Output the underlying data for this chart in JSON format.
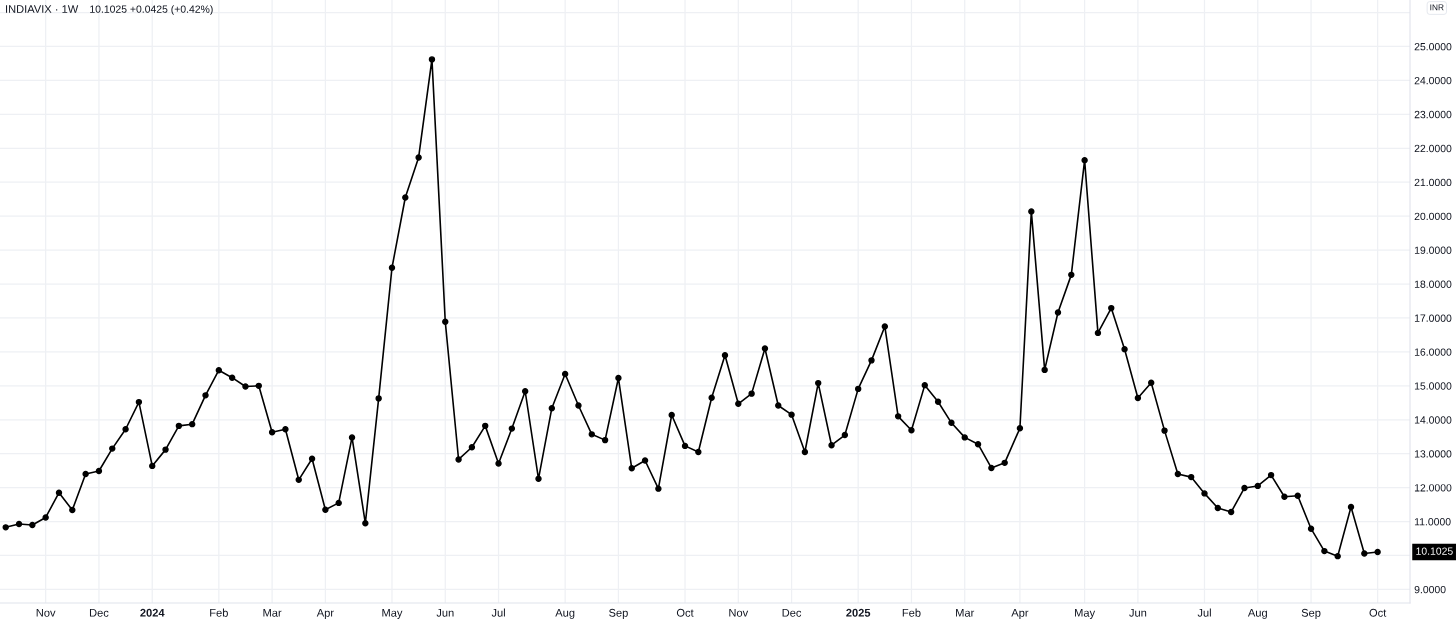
{
  "chart_data": {
    "type": "line",
    "title": "INDIAVIX · 1W",
    "subtitle": "10.1025 +0.0425 (+0.42%)",
    "x": [
      "2023-10-16",
      "2023-10-23",
      "2023-10-30",
      "2023-11-06",
      "2023-11-13",
      "2023-11-20",
      "2023-11-27",
      "2023-12-04",
      "2023-12-11",
      "2023-12-18",
      "2023-12-25",
      "2024-01-01",
      "2024-01-08",
      "2024-01-15",
      "2024-01-22",
      "2024-01-29",
      "2024-02-05",
      "2024-02-12",
      "2024-02-19",
      "2024-02-26",
      "2024-03-04",
      "2024-03-11",
      "2024-03-18",
      "2024-03-25",
      "2024-04-01",
      "2024-04-08",
      "2024-04-15",
      "2024-04-22",
      "2024-04-29",
      "2024-05-06",
      "2024-05-13",
      "2024-05-20",
      "2024-05-27",
      "2024-06-03",
      "2024-06-10",
      "2024-06-17",
      "2024-06-24",
      "2024-07-01",
      "2024-07-08",
      "2024-07-15",
      "2024-07-22",
      "2024-07-29",
      "2024-08-05",
      "2024-08-12",
      "2024-08-19",
      "2024-08-26",
      "2024-09-02",
      "2024-09-09",
      "2024-09-16",
      "2024-09-23",
      "2024-09-30",
      "2024-10-07",
      "2024-10-14",
      "2024-10-21",
      "2024-10-28",
      "2024-11-04",
      "2024-11-11",
      "2024-11-18",
      "2024-11-25",
      "2024-12-02",
      "2024-12-09",
      "2024-12-16",
      "2024-12-23",
      "2024-12-30",
      "2025-01-06",
      "2025-01-13",
      "2025-01-20",
      "2025-01-27",
      "2025-02-03",
      "2025-02-10",
      "2025-02-17",
      "2025-02-24",
      "2025-03-03",
      "2025-03-10",
      "2025-03-17",
      "2025-03-24",
      "2025-04-01",
      "2025-04-07",
      "2025-04-14",
      "2025-04-21",
      "2025-04-28",
      "2025-05-05",
      "2025-05-12",
      "2025-05-19",
      "2025-05-26",
      "2025-06-02",
      "2025-06-09",
      "2025-06-16",
      "2025-06-23",
      "2025-06-30",
      "2025-07-07",
      "2025-07-14",
      "2025-07-21",
      "2025-07-28",
      "2025-08-04",
      "2025-08-11",
      "2025-08-18",
      "2025-08-25",
      "2025-09-01",
      "2025-09-08",
      "2025-09-15",
      "2025-09-22",
      "2025-09-29",
      "2025-10-06"
    ],
    "series": [
      {
        "color": "#000000",
        "values": [
          10.83,
          10.93,
          10.9,
          11.12,
          11.85,
          11.34,
          12.4,
          12.49,
          13.15,
          13.72,
          14.52,
          12.64,
          13.12,
          13.82,
          13.87,
          14.72,
          15.46,
          15.24,
          14.98,
          15.0,
          13.63,
          13.72,
          12.23,
          12.85,
          11.35,
          11.55,
          13.48,
          10.95,
          14.63,
          18.48,
          20.55,
          21.73,
          24.62,
          16.89,
          12.83,
          13.19,
          13.82,
          12.71,
          13.74,
          14.84,
          12.26,
          14.34,
          15.35,
          14.42,
          13.57,
          13.4,
          15.23,
          12.57,
          12.8,
          11.97,
          14.14,
          13.23,
          13.05,
          14.65,
          15.9,
          14.47,
          14.77,
          16.1,
          14.42,
          14.15,
          13.05,
          15.08,
          13.25,
          13.55,
          14.91,
          15.75,
          16.75,
          14.1,
          13.69,
          15.02,
          14.53,
          13.91,
          13.48,
          13.28,
          12.58,
          12.73,
          13.75,
          20.14,
          15.47,
          17.16,
          18.27,
          21.65,
          16.56,
          17.29,
          16.08,
          14.64,
          15.09,
          13.68,
          12.4,
          12.31,
          11.83,
          11.4,
          11.28,
          11.99,
          12.05,
          12.37,
          11.73,
          11.76,
          10.79,
          10.13,
          9.98,
          11.43,
          10.06,
          10.1025
        ]
      }
    ],
    "xlim": [
      "2023-10-13",
      "2025-10-23"
    ],
    "xticks": [
      {
        "value": "2023-11-06",
        "label": "Nov"
      },
      {
        "value": "2023-12-04",
        "label": "Dec"
      },
      {
        "value": "2024-01-01",
        "label": "2024"
      },
      {
        "value": "2024-02-05",
        "label": "Feb"
      },
      {
        "value": "2024-03-04",
        "label": "Mar"
      },
      {
        "value": "2024-04-01",
        "label": "Apr"
      },
      {
        "value": "2024-05-06",
        "label": "May"
      },
      {
        "value": "2024-06-03",
        "label": "Jun"
      },
      {
        "value": "2024-07-01",
        "label": "Jul"
      },
      {
        "value": "2024-08-05",
        "label": "Aug"
      },
      {
        "value": "2024-09-02",
        "label": "Sep"
      },
      {
        "value": "2024-10-07",
        "label": "Oct"
      },
      {
        "value": "2024-11-04",
        "label": "Nov"
      },
      {
        "value": "2024-12-02",
        "label": "Dec"
      },
      {
        "value": "2025-01-06",
        "label": "2025"
      },
      {
        "value": "2025-02-03",
        "label": "Feb"
      },
      {
        "value": "2025-03-03",
        "label": "Mar"
      },
      {
        "value": "2025-04-01",
        "label": "Apr"
      },
      {
        "value": "2025-05-05",
        "label": "May"
      },
      {
        "value": "2025-06-02",
        "label": "Jun"
      },
      {
        "value": "2025-07-07",
        "label": "Jul"
      },
      {
        "value": "2025-08-04",
        "label": "Aug"
      },
      {
        "value": "2025-09-01",
        "label": "Sep"
      },
      {
        "value": "2025-10-06",
        "label": "Oct"
      }
    ],
    "ylim": [
      8.6,
      26.37
    ],
    "yticks": [
      {
        "value": 9,
        "label": "9.0000"
      },
      {
        "value": 10,
        "label": null
      },
      {
        "value": 11,
        "label": "11.0000"
      },
      {
        "value": 12,
        "label": "12.0000"
      },
      {
        "value": 13,
        "label": "13.0000"
      },
      {
        "value": 14,
        "label": "14.0000"
      },
      {
        "value": 15,
        "label": "15.0000"
      },
      {
        "value": 16,
        "label": "16.0000"
      },
      {
        "value": 17,
        "label": "17.0000"
      },
      {
        "value": 18,
        "label": "18.0000"
      },
      {
        "value": 19,
        "label": "19.0000"
      },
      {
        "value": 20,
        "label": "20.0000"
      },
      {
        "value": 21,
        "label": "21.0000"
      },
      {
        "value": 22,
        "label": "22.0000"
      },
      {
        "value": 23,
        "label": "23.0000"
      },
      {
        "value": 24,
        "label": "24.0000"
      },
      {
        "value": 25,
        "label": "25.0000"
      },
      {
        "value": 26,
        "label": null
      }
    ],
    "annotations": [
      "INR",
      "10.1025"
    ],
    "grid": true,
    "marker": "circle",
    "line_style": "solid"
  }
}
